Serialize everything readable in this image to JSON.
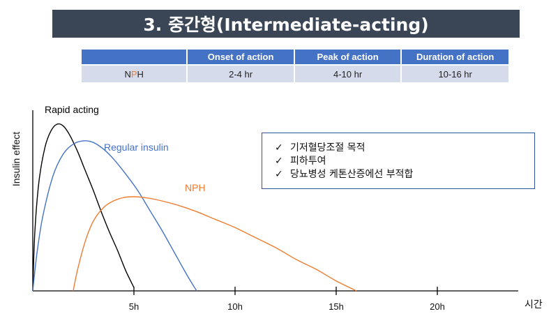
{
  "title": "3. 중간형(Intermediate-acting)",
  "table": {
    "headers": [
      "",
      "Onset of action",
      "Peak of action",
      "Duration of action"
    ],
    "row": {
      "name_parts": [
        "N",
        "P",
        "H"
      ],
      "onset": "2-4 hr",
      "peak": "4-10 hr",
      "duration": "10-16 hr"
    }
  },
  "notes": [
    "기저혈당조절 목적",
    "피하투여",
    "당뇨병성 케톤산증에선 부적합"
  ],
  "check_glyph": "✓",
  "chart_data": {
    "type": "line",
    "title": "",
    "xlabel": "시간",
    "ylabel": "Insulin effect",
    "xlim": [
      0,
      24
    ],
    "ylim": [
      0,
      1
    ],
    "x_ticks": [
      5,
      10,
      15,
      20
    ],
    "x_tick_labels": [
      "5h",
      "10h",
      "15h",
      "20h"
    ],
    "grid": false,
    "series": [
      {
        "name": "Rapid acting",
        "color": "#000000",
        "label_color": "#000000",
        "x": [
          0,
          0.1,
          0.3,
          0.6,
          0.9,
          1.2,
          1.5,
          1.8,
          2.2,
          2.6,
          3.0,
          3.4,
          3.8,
          4.2,
          4.6,
          5.0,
          4.5
        ],
        "y": [
          0,
          0.35,
          0.65,
          0.86,
          0.96,
          1.0,
          0.99,
          0.94,
          0.84,
          0.72,
          0.6,
          0.47,
          0.35,
          0.24,
          0.12,
          0.02,
          0.0
        ]
      },
      {
        "name": "Regular insulin",
        "color": "#4472c4",
        "label_color": "#4472c4",
        "x": [
          0,
          0.2,
          0.5,
          1.0,
          1.5,
          2.0,
          2.5,
          3.0,
          3.5,
          4.0,
          4.6,
          5.2,
          5.8,
          6.4,
          7.0,
          7.6,
          8.1
        ],
        "y": [
          0,
          0.22,
          0.45,
          0.69,
          0.82,
          0.88,
          0.9,
          0.89,
          0.85,
          0.79,
          0.7,
          0.6,
          0.48,
          0.36,
          0.23,
          0.1,
          0.0
        ]
      },
      {
        "name": "NPH",
        "color": "#ed7d31",
        "label_color": "#ed7d31",
        "x": [
          2.0,
          2.2,
          2.6,
          3.0,
          3.5,
          4.0,
          4.5,
          5.0,
          5.5,
          6.0,
          7.0,
          8.0,
          9.0,
          10.0,
          11.0,
          12.0,
          13.0,
          14.0,
          15.0,
          16.0
        ],
        "y": [
          0,
          0.12,
          0.3,
          0.42,
          0.5,
          0.54,
          0.56,
          0.565,
          0.56,
          0.55,
          0.52,
          0.48,
          0.43,
          0.38,
          0.32,
          0.26,
          0.19,
          0.13,
          0.06,
          0.0
        ]
      }
    ]
  }
}
